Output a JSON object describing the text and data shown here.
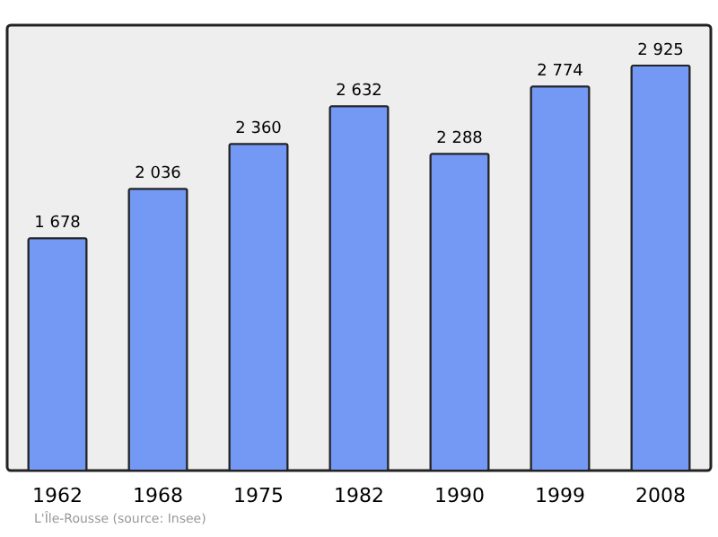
{
  "chart_data": {
    "type": "bar",
    "categories": [
      "1962",
      "1968",
      "1975",
      "1982",
      "1990",
      "1999",
      "2008"
    ],
    "values": [
      1678,
      2036,
      2360,
      2632,
      2288,
      2774,
      2925
    ],
    "value_labels": [
      "1 678",
      "2 036",
      "2 360",
      "2 632",
      "2 288",
      "2 774",
      "2 925"
    ],
    "color": "#7399f5",
    "annotations": [
      "L'Île-Rousse",
      "(source: Insee)"
    ]
  }
}
